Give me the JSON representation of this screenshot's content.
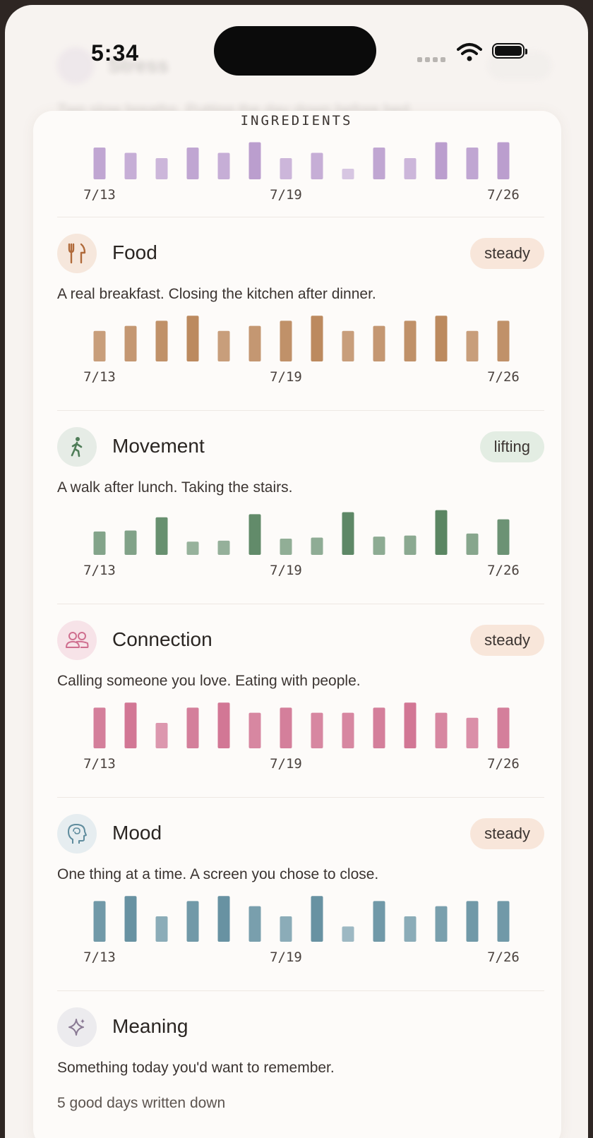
{
  "status": {
    "time": "5:34"
  },
  "section_title": "INGREDIENTS",
  "ghost": {
    "title": "Stress",
    "text": "Two slow breaths. Putting the day down before bed."
  },
  "axis_labels": [
    "7/13",
    "7/19",
    "7/26"
  ],
  "colors": {
    "stress": "#ad8ac4",
    "food": "#b88356",
    "movement": "#4f7d58",
    "connection": "#cf6f8f",
    "mood": "#5f8c9d",
    "meaning": "#8a7a94"
  },
  "stress_chart": {
    "type": "bar",
    "values": [
      3,
      2.5,
      2,
      3,
      2.5,
      3.5,
      2,
      2.5,
      1,
      3,
      2,
      3.5,
      3,
      3.5
    ],
    "ylim": [
      0,
      4
    ],
    "x_labels": [
      "7/13",
      "7/19",
      "7/26"
    ]
  },
  "habits": [
    {
      "key": "food",
      "name": "Food",
      "icon": "fork-knife-icon",
      "badge": "steady",
      "badge_bg": "#f8e6da",
      "icon_bg": "#f6e7dc",
      "desc": "A real breakfast. Closing the kitchen after dinner.",
      "chart_data": {
        "type": "bar",
        "values": [
          3,
          3.5,
          4,
          4.5,
          3,
          3.5,
          4,
          4.5,
          3,
          3.5,
          4,
          4.5,
          3,
          4
        ],
        "ylim": [
          0,
          5
        ],
        "x_labels": [
          "7/13",
          "7/19",
          "7/26"
        ]
      }
    },
    {
      "key": "movement",
      "name": "Movement",
      "icon": "walking-person-icon",
      "badge": "lifting",
      "badge_bg": "#e3ede3",
      "icon_bg": "#e6ece6",
      "desc": "A walk after lunch. Taking the stairs.",
      "chart_data": {
        "type": "bar",
        "values": [
          2.3,
          2.4,
          3.7,
          1.3,
          1.4,
          4,
          1.6,
          1.7,
          4.2,
          1.8,
          1.9,
          4.4,
          2.1,
          3.5
        ],
        "ylim": [
          0,
          5
        ],
        "x_labels": [
          "7/13",
          "7/19",
          "7/26"
        ]
      }
    },
    {
      "key": "connection",
      "name": "Connection",
      "icon": "people-icon",
      "badge": "steady",
      "badge_bg": "#f8e6da",
      "icon_bg": "#f7e3e8",
      "desc": "Calling someone you love. Eating with people.",
      "chart_data": {
        "type": "bar",
        "values": [
          4,
          4.5,
          2.5,
          4,
          4.5,
          3.5,
          4,
          3.5,
          3.5,
          4,
          4.5,
          3.5,
          3,
          4
        ],
        "ylim": [
          0,
          5
        ],
        "x_labels": [
          "7/13",
          "7/19",
          "7/26"
        ]
      }
    },
    {
      "key": "mood",
      "name": "Mood",
      "icon": "head-brain-icon",
      "badge": "steady",
      "badge_bg": "#f8e6da",
      "icon_bg": "#e6edf0",
      "desc": "One thing at a time. A screen you chose to close.",
      "chart_data": {
        "type": "bar",
        "values": [
          4,
          4.5,
          2.5,
          4,
          4.5,
          3.5,
          2.5,
          4.5,
          1.5,
          4,
          2.5,
          3.5,
          4,
          4
        ],
        "ylim": [
          0,
          5
        ],
        "x_labels": [
          "7/13",
          "7/19",
          "7/26"
        ]
      }
    }
  ],
  "meaning": {
    "name": "Meaning",
    "icon": "sparkle-icon",
    "icon_bg": "#ecebee",
    "desc": "Something today you'd want to remember.",
    "count_text": "5 good days written down"
  }
}
